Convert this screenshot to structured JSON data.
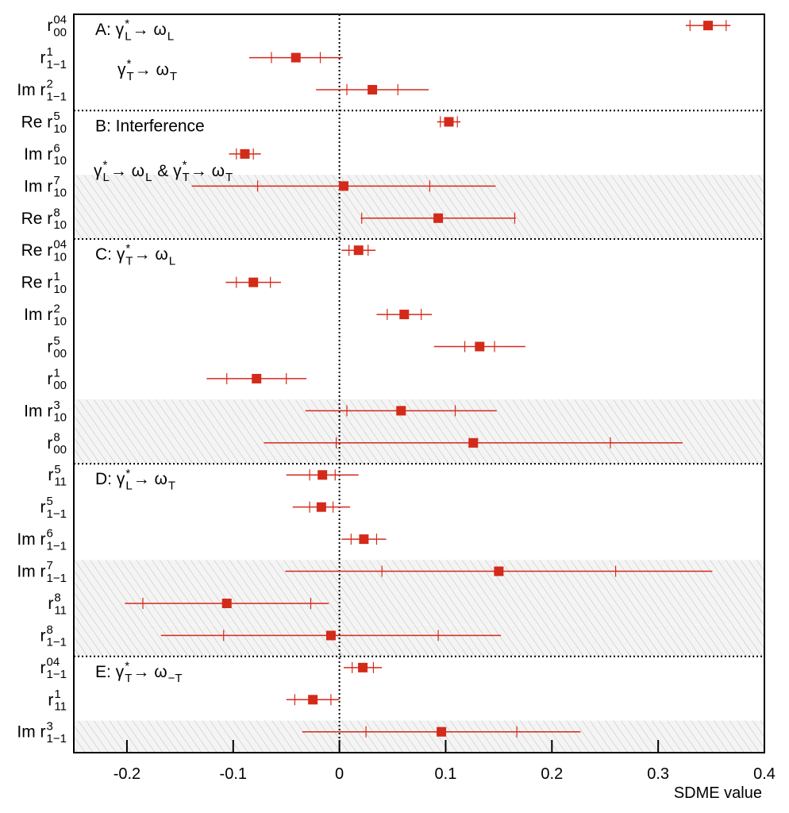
{
  "chart_data": {
    "type": "errorbar",
    "x_label": "SDME value",
    "xlim": [
      -0.25,
      0.4
    ],
    "xticks": [
      -0.2,
      -0.1,
      0,
      0.1,
      0.2,
      0.3,
      0.4
    ],
    "color": "#d42a1a",
    "categories": [
      [
        {
          "t": "r"
        },
        {
          "sup": "04",
          "sub": "00"
        }
      ],
      [
        {
          "t": "r"
        },
        {
          "sup": "1",
          "sub": "1−1"
        }
      ],
      [
        {
          "t": "Im r"
        },
        {
          "sup": "2",
          "sub": "1−1"
        }
      ],
      [
        {
          "t": "Re r"
        },
        {
          "sup": "5",
          "sub": "10"
        }
      ],
      [
        {
          "t": "Im r"
        },
        {
          "sup": "6",
          "sub": "10"
        }
      ],
      [
        {
          "t": "Im r"
        },
        {
          "sup": "7",
          "sub": "10"
        }
      ],
      [
        {
          "t": "Re r"
        },
        {
          "sup": "8",
          "sub": "10"
        }
      ],
      [
        {
          "t": "Re r"
        },
        {
          "sup": "04",
          "sub": "10"
        }
      ],
      [
        {
          "t": "Re r"
        },
        {
          "sup": "1",
          "sub": "10"
        }
      ],
      [
        {
          "t": "Im r"
        },
        {
          "sup": "2",
          "sub": "10"
        }
      ],
      [
        {
          "t": "r"
        },
        {
          "sup": "5",
          "sub": "00"
        }
      ],
      [
        {
          "t": "r"
        },
        {
          "sup": "1",
          "sub": "00"
        }
      ],
      [
        {
          "t": "Im r"
        },
        {
          "sup": "3",
          "sub": "10"
        }
      ],
      [
        {
          "t": "r"
        },
        {
          "sup": "8",
          "sub": "00"
        }
      ],
      [
        {
          "t": "r"
        },
        {
          "sup": "5",
          "sub": "11"
        }
      ],
      [
        {
          "t": "r"
        },
        {
          "sup": "5",
          "sub": "1−1"
        }
      ],
      [
        {
          "t": "Im r"
        },
        {
          "sup": "6",
          "sub": "1−1"
        }
      ],
      [
        {
          "t": "Im r"
        },
        {
          "sup": "7",
          "sub": "1−1"
        }
      ],
      [
        {
          "t": "r"
        },
        {
          "sup": "8",
          "sub": "11"
        }
      ],
      [
        {
          "t": "r"
        },
        {
          "sup": "8",
          "sub": "1−1"
        }
      ],
      [
        {
          "t": "r"
        },
        {
          "sup": "04",
          "sub": "1−1"
        }
      ],
      [
        {
          "t": "r"
        },
        {
          "sup": "1",
          "sub": "11"
        }
      ],
      [
        {
          "t": "Im r"
        },
        {
          "sup": "3",
          "sub": "1−1"
        }
      ]
    ],
    "values": [
      0.347,
      -0.041,
      0.031,
      0.103,
      -0.089,
      0.004,
      0.093,
      0.018,
      -0.081,
      0.061,
      0.132,
      -0.078,
      0.058,
      0.126,
      -0.016,
      -0.017,
      0.023,
      0.15,
      -0.106,
      -0.008,
      0.022,
      -0.025,
      0.096
    ],
    "stat_errors": [
      0.017,
      0.023,
      0.024,
      0.008,
      0.008,
      0.081,
      0.072,
      0.009,
      0.016,
      0.016,
      0.014,
      0.028,
      0.051,
      0.129,
      0.012,
      0.011,
      0.012,
      0.11,
      0.079,
      0.101,
      0.01,
      0.017,
      0.071
    ],
    "total_errors": [
      0.021,
      0.044,
      0.053,
      0.011,
      0.015,
      0.143,
      0.073,
      0.016,
      0.026,
      0.026,
      0.043,
      0.047,
      0.09,
      0.197,
      0.034,
      0.027,
      0.021,
      0.201,
      0.096,
      0.16,
      0.018,
      0.025,
      0.131
    ],
    "shaded": [
      5,
      6,
      12,
      13,
      17,
      18,
      19,
      22
    ],
    "dividers": [
      3,
      7,
      14,
      20
    ],
    "annotations": [
      {
        "row": 0,
        "parts": [
          {
            "t": "A: γ"
          },
          {
            "sup": "*",
            "sub": "L"
          },
          {
            "t": "→ ω"
          },
          {
            "sub": "L"
          }
        ]
      },
      {
        "row": 1,
        "parts": [
          {
            "t": "γ"
          },
          {
            "sup": "*",
            "sub": "T"
          },
          {
            "t": "→ ω"
          },
          {
            "sub": "T"
          }
        ]
      },
      {
        "row": 3,
        "parts": [
          {
            "t": "B: Interference"
          }
        ]
      },
      {
        "row": 4,
        "parts": [
          {
            "t": "γ"
          },
          {
            "sup": "*",
            "sub": "L"
          },
          {
            "t": "→ ω"
          },
          {
            "sub": "L"
          },
          {
            "t": " & γ"
          },
          {
            "sup": "*",
            "sub": "T"
          },
          {
            "t": "→ ω"
          },
          {
            "sub": "T"
          }
        ]
      },
      {
        "row": 7,
        "parts": [
          {
            "t": "C: γ"
          },
          {
            "sup": "*",
            "sub": "T"
          },
          {
            "t": "→ ω"
          },
          {
            "sub": "L"
          }
        ]
      },
      {
        "row": 14,
        "parts": [
          {
            "t": "D: γ"
          },
          {
            "sup": "*",
            "sub": "L"
          },
          {
            "t": "→ ω"
          },
          {
            "sub": "T"
          }
        ]
      },
      {
        "row": 20,
        "parts": [
          {
            "t": "E: γ"
          },
          {
            "sup": "*",
            "sub": "T"
          },
          {
            "t": "→ ω"
          },
          {
            "sub": "−T"
          }
        ]
      }
    ]
  }
}
